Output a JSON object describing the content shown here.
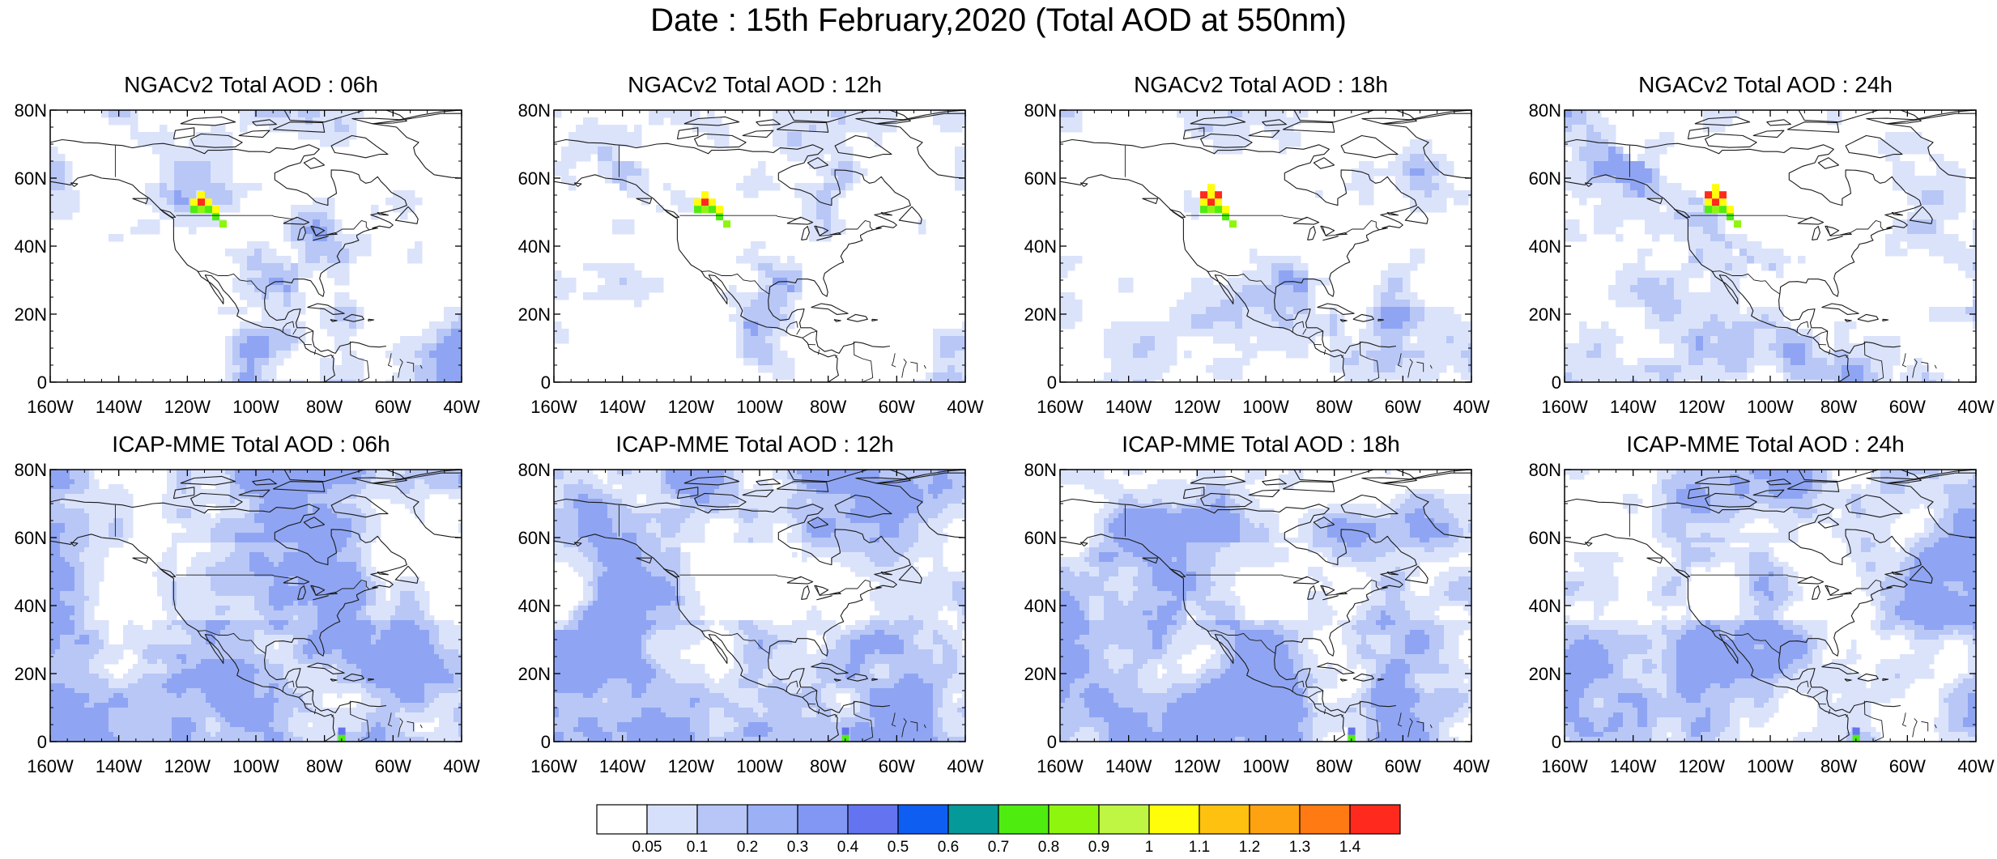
{
  "title": "Date : 15th February,2020 (Total AOD at 550nm)",
  "axes": {
    "lat_labels": [
      "80N",
      "60N",
      "40N",
      "20N",
      "0"
    ],
    "lon_labels": [
      "160W",
      "140W",
      "120W",
      "100W",
      "80W",
      "60W",
      "40W"
    ]
  },
  "panels": [
    {
      "title": "NGACv2 Total AOD : 06h",
      "model": "NGACv2",
      "hour": "06h"
    },
    {
      "title": "NGACv2 Total AOD : 12h",
      "model": "NGACv2",
      "hour": "12h"
    },
    {
      "title": "NGACv2 Total AOD : 18h",
      "model": "NGACv2",
      "hour": "18h"
    },
    {
      "title": "NGACv2 Total AOD : 24h",
      "model": "NGACv2",
      "hour": "24h"
    },
    {
      "title": "ICAP-MME Total AOD : 06h",
      "model": "ICAP-MME",
      "hour": "06h"
    },
    {
      "title": "ICAP-MME Total AOD : 12h",
      "model": "ICAP-MME",
      "hour": "12h"
    },
    {
      "title": "ICAP-MME Total AOD : 18h",
      "model": "ICAP-MME",
      "hour": "18h"
    },
    {
      "title": "ICAP-MME Total AOD : 24h",
      "model": "ICAP-MME",
      "hour": "24h"
    }
  ],
  "colorbar": {
    "labels": [
      "0.05",
      "0.1",
      "0.2",
      "0.3",
      "0.4",
      "0.5",
      "0.6",
      "0.7",
      "0.8",
      "0.9",
      "1",
      "1.1",
      "1.2",
      "1.3",
      "1.4"
    ],
    "colors": [
      "#ffffff",
      "#d7e0fb",
      "#b7c6f7",
      "#9bb0f5",
      "#8296f3",
      "#6473f0",
      "#0f5ef2",
      "#05999a",
      "#4fec10",
      "#8ef50f",
      "#bff543",
      "#fffd0a",
      "#ffc10f",
      "#ffa211",
      "#ff7a12",
      "#ff2a1d"
    ]
  },
  "map_colors": {
    "background": "#ffffff",
    "low": "#dbe3fb",
    "mid": "#b8c7f6",
    "high": "#8fa5f3",
    "hotspot": [
      "#ff2a1d",
      "#fffd0a",
      "#4fec10",
      "#8ef50f"
    ],
    "coast": "#1a1a1a"
  }
}
